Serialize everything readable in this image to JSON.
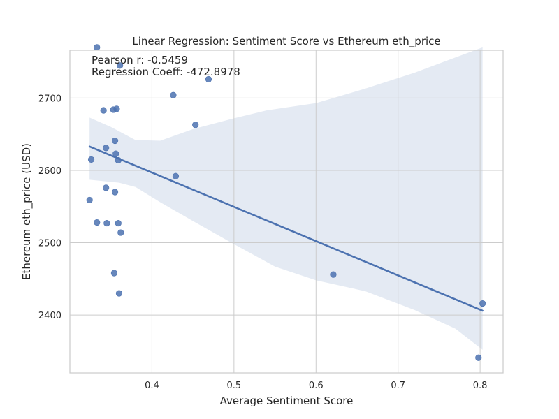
{
  "chart_data": {
    "type": "scatter",
    "title": "Linear Regression: Sentiment Score vs Ethereum eth_price",
    "xlabel": "Average Sentiment Score",
    "ylabel": "Ethereum eth_price (USD)",
    "xlim": [
      0.3,
      0.828
    ],
    "ylim": [
      2320,
      2766
    ],
    "x_ticks": [
      0.4,
      0.5,
      0.6,
      0.7,
      0.8
    ],
    "y_ticks": [
      2400,
      2500,
      2600,
      2700
    ],
    "grid": true,
    "annotations": [
      "Pearson r: -0.5459",
      "Regression Coeff: -472.8978"
    ],
    "series": [
      {
        "type": "scatter",
        "color": "#4c72b0",
        "points": [
          {
            "x": 0.333,
            "y": 2770
          },
          {
            "x": 0.361,
            "y": 2745
          },
          {
            "x": 0.469,
            "y": 2726
          },
          {
            "x": 0.426,
            "y": 2704
          },
          {
            "x": 0.341,
            "y": 2683
          },
          {
            "x": 0.353,
            "y": 2684
          },
          {
            "x": 0.357,
            "y": 2685
          },
          {
            "x": 0.453,
            "y": 2663
          },
          {
            "x": 0.355,
            "y": 2641
          },
          {
            "x": 0.344,
            "y": 2631
          },
          {
            "x": 0.356,
            "y": 2623
          },
          {
            "x": 0.326,
            "y": 2615
          },
          {
            "x": 0.359,
            "y": 2614
          },
          {
            "x": 0.429,
            "y": 2592
          },
          {
            "x": 0.344,
            "y": 2576
          },
          {
            "x": 0.355,
            "y": 2570
          },
          {
            "x": 0.324,
            "y": 2559
          },
          {
            "x": 0.333,
            "y": 2528
          },
          {
            "x": 0.345,
            "y": 2527
          },
          {
            "x": 0.359,
            "y": 2527
          },
          {
            "x": 0.362,
            "y": 2514
          },
          {
            "x": 0.354,
            "y": 2458
          },
          {
            "x": 0.621,
            "y": 2456
          },
          {
            "x": 0.36,
            "y": 2430
          },
          {
            "x": 0.803,
            "y": 2416
          },
          {
            "x": 0.798,
            "y": 2341
          }
        ]
      },
      {
        "type": "line",
        "color": "#4c72b0",
        "points": [
          {
            "x": 0.324,
            "y": 2633
          },
          {
            "x": 0.803,
            "y": 2406
          }
        ]
      },
      {
        "type": "area",
        "color": "#4c72b0",
        "upper": [
          {
            "x": 0.324,
            "y": 2673
          },
          {
            "x": 0.35,
            "y": 2660
          },
          {
            "x": 0.38,
            "y": 2642
          },
          {
            "x": 0.41,
            "y": 2641
          },
          {
            "x": 0.45,
            "y": 2657
          },
          {
            "x": 0.5,
            "y": 2672
          },
          {
            "x": 0.54,
            "y": 2683
          },
          {
            "x": 0.6,
            "y": 2693
          },
          {
            "x": 0.66,
            "y": 2713
          },
          {
            "x": 0.72,
            "y": 2735
          },
          {
            "x": 0.803,
            "y": 2770
          }
        ],
        "lower": [
          {
            "x": 0.324,
            "y": 2587
          },
          {
            "x": 0.36,
            "y": 2583
          },
          {
            "x": 0.38,
            "y": 2577
          },
          {
            "x": 0.41,
            "y": 2556
          },
          {
            "x": 0.45,
            "y": 2530
          },
          {
            "x": 0.5,
            "y": 2498
          },
          {
            "x": 0.55,
            "y": 2467
          },
          {
            "x": 0.6,
            "y": 2448
          },
          {
            "x": 0.66,
            "y": 2433
          },
          {
            "x": 0.72,
            "y": 2407
          },
          {
            "x": 0.77,
            "y": 2381
          },
          {
            "x": 0.803,
            "y": 2352
          }
        ]
      }
    ]
  }
}
